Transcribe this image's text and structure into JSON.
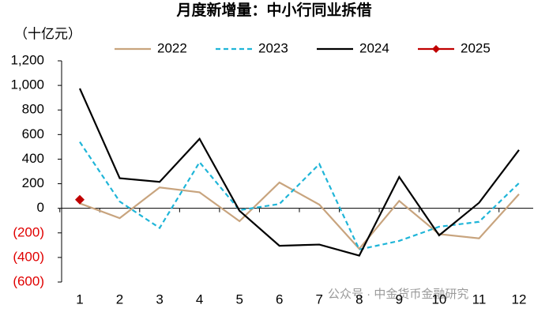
{
  "chart_data": {
    "type": "line",
    "title": "月度新增量：中小行同业拆借",
    "y_axis_label": "（十亿元）",
    "categories": [
      "1",
      "2",
      "3",
      "4",
      "5",
      "6",
      "7",
      "8",
      "9",
      "10",
      "11",
      "12"
    ],
    "series": [
      {
        "name": "2022",
        "color": "#c8a47e",
        "style": "solid",
        "values": [
          40,
          -80,
          170,
          130,
          -105,
          210,
          30,
          -330,
          60,
          -210,
          -245,
          115
        ]
      },
      {
        "name": "2023",
        "color": "#1fb5d8",
        "style": "dashed",
        "values": [
          540,
          55,
          -160,
          375,
          -15,
          35,
          360,
          -335,
          -265,
          -150,
          -110,
          205
        ]
      },
      {
        "name": "2024",
        "color": "#000000",
        "style": "solid",
        "values": [
          975,
          245,
          215,
          565,
          -20,
          -305,
          -295,
          -385,
          255,
          -220,
          45,
          475
        ]
      },
      {
        "name": "2025",
        "color": "#c00000",
        "style": "solid",
        "marker": "diamond",
        "values": [
          70,
          null,
          null,
          null,
          null,
          null,
          null,
          null,
          null,
          null,
          null,
          null
        ]
      }
    ],
    "ylim": [
      -600,
      1200
    ],
    "yticks": [
      {
        "value": 1200,
        "label": "1,200"
      },
      {
        "value": 1000,
        "label": "1,000"
      },
      800,
      600,
      400,
      200,
      0,
      {
        "value": -200,
        "label": "(200)"
      },
      {
        "value": -400,
        "label": "(400)"
      },
      {
        "value": -600,
        "label": "(600)"
      }
    ],
    "negative_tick_color": "#e00000",
    "legend": "top",
    "watermark": "公众号 · 中金货币金融研究"
  }
}
